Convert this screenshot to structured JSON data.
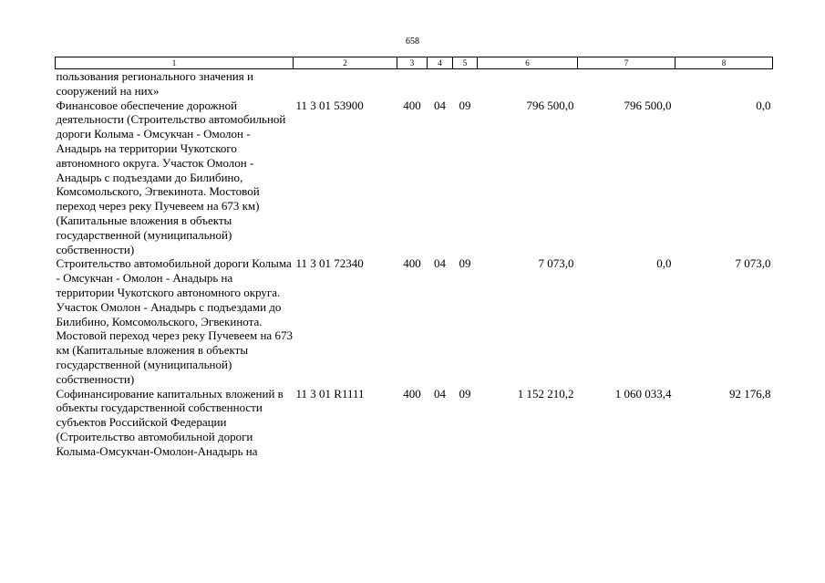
{
  "page_number": "658",
  "header": [
    "1",
    "2",
    "3",
    "4",
    "5",
    "6",
    "7",
    "8"
  ],
  "rows": [
    {
      "name": "пользования регионального значения и сооружений на них»",
      "code": "",
      "c3": "",
      "c4": "",
      "c5": "",
      "c6": "",
      "c7": "",
      "c8": ""
    },
    {
      "name": "Финансовое обеспечение дорожной деятельности (Строительство автомобильной дороги Колыма - Омсукчан - Омолон - Анадырь на территории Чукотского автономного округа. Участок Омолон - Анадырь с подъездами до Билибино, Комсомольского, Эгвекинота. Мостовой переход через реку Пучевеем на 673 км) (Капитальные вложения в объекты государственной (муниципальной) собственности)",
      "code": "11 3 01 53900",
      "c3": "400",
      "c4": "04",
      "c5": "09",
      "c6": "796 500,0",
      "c7": "796 500,0",
      "c8": "0,0"
    },
    {
      "name": "Строительство автомобильной дороги Колыма - Омсукчан - Омолон - Анадырь на территории Чукотского автономного округа. Участок Омолон - Анадырь с подъездами до Билибино, Комсомольского, Эгвекинота. Мостовой переход через реку Пучевеем на 673 км (Капитальные вложения в объекты государственной (муниципальной) собственности)",
      "code": "11 3 01 72340",
      "c3": "400",
      "c4": "04",
      "c5": "09",
      "c6": "7 073,0",
      "c7": "0,0",
      "c8": "7 073,0"
    },
    {
      "name": "Софинансирование капитальных вложений в объекты государственной собственности субъектов Российской Федерации (Строительство автомобильной дороги Колыма-Омсукчан-Омолон-Анадырь на",
      "code": "11 3 01 R1111",
      "c3": "400",
      "c4": "04",
      "c5": "09",
      "c6": "1 152 210,2",
      "c7": "1 060 033,4",
      "c8": "92 176,8"
    }
  ]
}
